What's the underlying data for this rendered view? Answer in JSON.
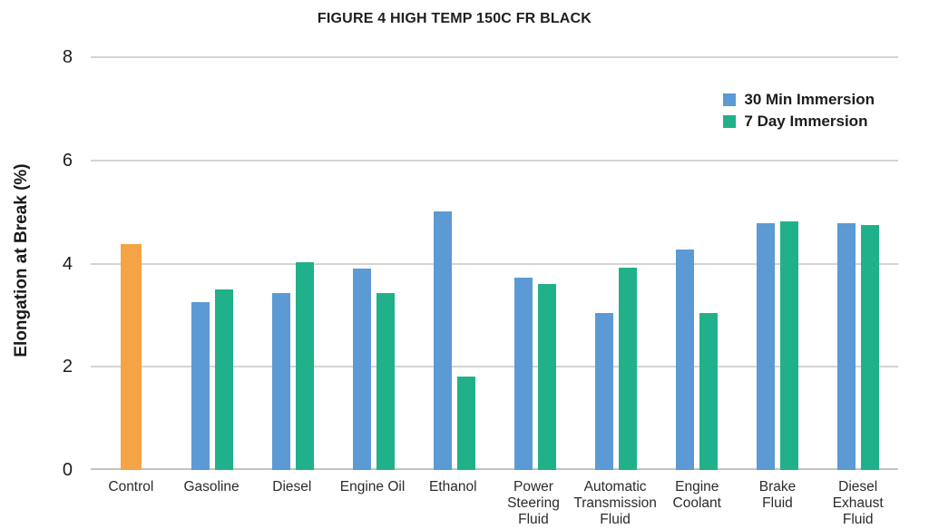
{
  "chart_data": {
    "type": "bar",
    "title": "FIGURE 4 HIGH TEMP 150C FR BLACK",
    "ylabel": "Elongation at Break (%)",
    "ylim": [
      0,
      8
    ],
    "yticks": [
      0,
      2,
      4,
      6,
      8
    ],
    "grid": true,
    "legend_position": "top-right",
    "categories": [
      "Control",
      "Gasoline",
      "Diesel",
      "Engine Oil",
      "Ethanol",
      "Power Steering Fluid",
      "Automatic Transmission Fluid",
      "Engine Coolant",
      "Brake Fluid",
      "Diesel Exhaust Fluid"
    ],
    "category_lines": [
      [
        "Control"
      ],
      [
        "Gasoline"
      ],
      [
        "Diesel"
      ],
      [
        "Engine Oil"
      ],
      [
        "Ethanol"
      ],
      [
        "Power",
        "Steering",
        "Fluid"
      ],
      [
        "Automatic",
        "Transmission",
        "Fluid"
      ],
      [
        "Engine",
        "Coolant"
      ],
      [
        "Brake",
        "Fluid"
      ],
      [
        "Diesel",
        "Exhaust",
        "Fluid"
      ]
    ],
    "control_bar": {
      "category": "Control",
      "value": 4.37,
      "color": "#F4A445"
    },
    "series": [
      {
        "name": "30 Min Immersion",
        "color": "#5B9AD4",
        "values": [
          null,
          3.25,
          3.43,
          3.9,
          5.02,
          3.72,
          3.05,
          4.28,
          4.79,
          4.79
        ]
      },
      {
        "name": "7 Day Immersion",
        "color": "#21B18A",
        "values": [
          null,
          3.5,
          4.03,
          3.43,
          1.82,
          3.6,
          3.92,
          3.05,
          4.81,
          4.74
        ]
      }
    ]
  }
}
